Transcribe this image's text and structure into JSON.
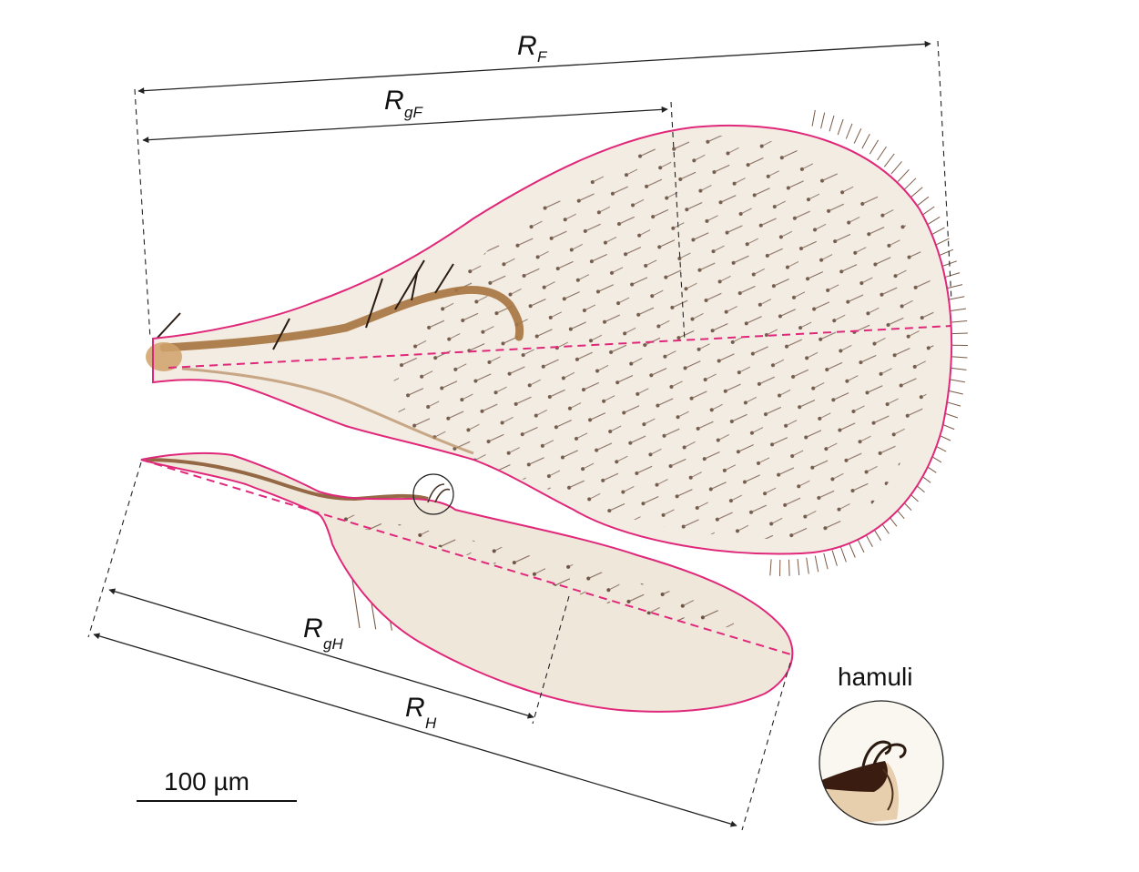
{
  "labels": {
    "rf": {
      "main": "R",
      "sub": "F"
    },
    "rgf": {
      "main": "R",
      "sub": "gF"
    },
    "rgh": {
      "main": "R",
      "sub": "gH"
    },
    "rh": {
      "main": "R",
      "sub": "H"
    }
  },
  "inset": {
    "label": "hamuli"
  },
  "scale_bar": {
    "label": "100  µm"
  },
  "colors": {
    "outline": "#e0287a",
    "dimension": "#222222",
    "membrane": "#f3ece2",
    "vein": "#a7743f"
  }
}
